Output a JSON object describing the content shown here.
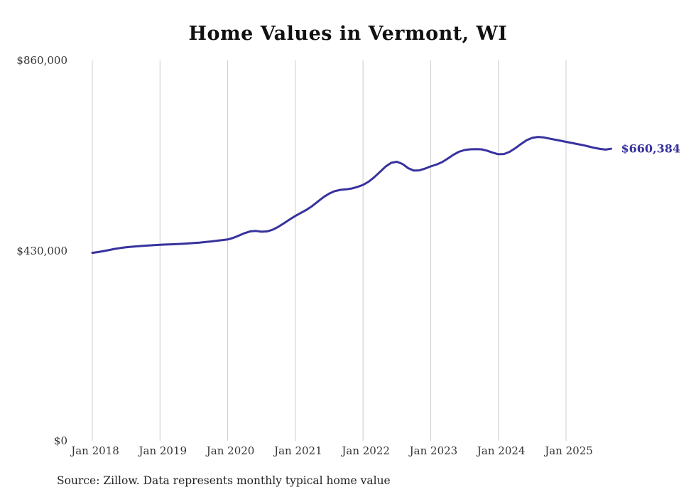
{
  "title": "Home Values in Vermont, WI",
  "source_note": "Source: Zillow. Data represents monthly typical home value",
  "end_label": "$660,384",
  "colors": {
    "line": "#38329e",
    "grid": "#cccccc",
    "axis_text": "#333333",
    "title_text": "#111111"
  },
  "chart_data": {
    "type": "line",
    "title": "Home Values in Vermont, WI",
    "xlabel": "",
    "ylabel": "",
    "ylim": [
      0,
      860000
    ],
    "y_ticks": [
      860000,
      430000,
      0
    ],
    "y_tick_labels": [
      "$860,000",
      "$430,000",
      "$0"
    ],
    "x_tick_labels": [
      "Jan 2018",
      "Jan 2019",
      "Jan 2020",
      "Jan 2021",
      "Jan 2022",
      "Jan 2023",
      "Jan 2024",
      "Jan 2025"
    ],
    "grid": "vertical-only",
    "legend": "none",
    "final_value": 660384,
    "series": [
      {
        "name": "Monthly typical home value",
        "months": [
          "Jan 2018",
          "Feb 2018",
          "Mar 2018",
          "Apr 2018",
          "May 2018",
          "Jun 2018",
          "Jul 2018",
          "Aug 2018",
          "Sep 2018",
          "Oct 2018",
          "Nov 2018",
          "Dec 2018",
          "Jan 2019",
          "Feb 2019",
          "Mar 2019",
          "Apr 2019",
          "May 2019",
          "Jun 2019",
          "Jul 2019",
          "Aug 2019",
          "Sep 2019",
          "Oct 2019",
          "Nov 2019",
          "Dec 2019",
          "Jan 2020",
          "Feb 2020",
          "Mar 2020",
          "Apr 2020",
          "May 2020",
          "Jun 2020",
          "Jul 2020",
          "Aug 2020",
          "Sep 2020",
          "Oct 2020",
          "Nov 2020",
          "Dec 2020",
          "Jan 2021",
          "Feb 2021",
          "Mar 2021",
          "Apr 2021",
          "May 2021",
          "Jun 2021",
          "Jul 2021",
          "Aug 2021",
          "Sep 2021",
          "Oct 2021",
          "Nov 2021",
          "Dec 2021",
          "Jan 2022",
          "Feb 2022",
          "Mar 2022",
          "Apr 2022",
          "May 2022",
          "Jun 2022",
          "Jul 2022",
          "Aug 2022",
          "Sep 2022",
          "Oct 2022",
          "Nov 2022",
          "Dec 2022",
          "Jan 2023",
          "Feb 2023",
          "Mar 2023",
          "Apr 2023",
          "May 2023",
          "Jun 2023",
          "Jul 2023",
          "Aug 2023",
          "Sep 2023",
          "Oct 2023",
          "Nov 2023",
          "Dec 2023",
          "Jan 2024",
          "Feb 2024",
          "Mar 2024",
          "Apr 2024",
          "May 2024",
          "Jun 2024",
          "Jul 2024",
          "Aug 2024",
          "Sep 2024",
          "Oct 2024",
          "Nov 2024",
          "Dec 2024",
          "Jan 2025",
          "Feb 2025",
          "Mar 2025",
          "Apr 2025",
          "May 2025",
          "Jun 2025",
          "Jul 2025",
          "Aug 2025",
          "Sep 2025"
        ],
        "values": [
          425000,
          426800,
          429000,
          431500,
          434000,
          436000,
          437500,
          438800,
          439800,
          440800,
          441800,
          442500,
          443200,
          443800,
          444300,
          444800,
          445500,
          446300,
          447200,
          448200,
          449400,
          450800,
          452300,
          453800,
          455200,
          459000,
          464000,
          469500,
          473500,
          474500,
          472800,
          473500,
          477500,
          484000,
          492000,
          500500,
          508500,
          515500,
          522500,
          531000,
          541000,
          551000,
          559000,
          564500,
          567500,
          568500,
          570500,
          574000,
          578500,
          586000,
          596000,
          608000,
          620000,
          628500,
          631000,
          626000,
          616500,
          611000,
          611500,
          615500,
          620500,
          624500,
          630000,
          638000,
          646500,
          653500,
          657500,
          659000,
          659500,
          659000,
          656000,
          651500,
          648000,
          648500,
          653500,
          661500,
          671000,
          679500,
          685000,
          687000,
          686000,
          683500,
          681000,
          678500,
          676000,
          673500,
          671000,
          668500,
          665500,
          662500,
          660000,
          658500,
          660384
        ]
      }
    ]
  }
}
